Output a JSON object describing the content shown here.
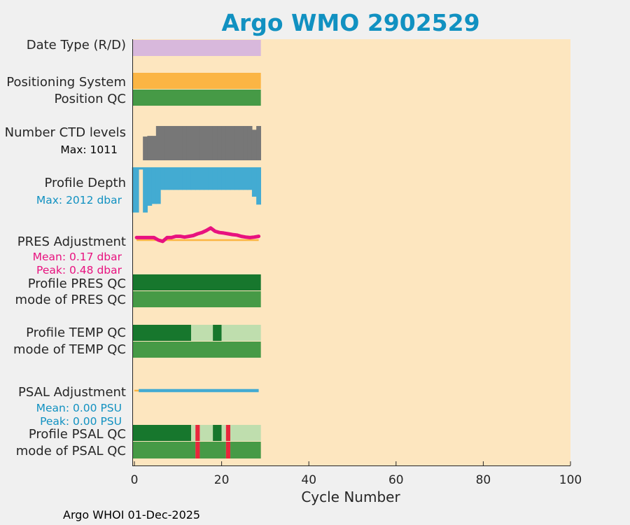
{
  "chart_data": {
    "type": "bar",
    "title": "Argo WMO 2902529",
    "xlabel": "Cycle Number",
    "xlim": [
      0,
      100
    ],
    "xticks": [
      "0",
      "20",
      "40",
      "60",
      "80",
      "100"
    ],
    "n_cycles": 29,
    "rows": {
      "date_type": {
        "label": "Date Type (R/D)"
      },
      "positioning_system": {
        "label": "Positioning System"
      },
      "position_qc": {
        "label": "Position QC"
      },
      "ctd_levels": {
        "label": "Number CTD levels",
        "max_text": "Max: 1011",
        "values": [
          0,
          0,
          700,
          720,
          720,
          1011,
          1011,
          1011,
          1011,
          1011,
          1011,
          1011,
          1011,
          1011,
          1011,
          1011,
          1011,
          1011,
          1011,
          1011,
          1011,
          1011,
          1011,
          1011,
          1011,
          1011,
          1011,
          900,
          1011
        ]
      },
      "profile_depth": {
        "label": "Profile Depth",
        "max_text": "Max: 2012 dbar",
        "values": [
          2000,
          100,
          2000,
          1700,
          1620,
          1620,
          1000,
          1000,
          1000,
          1000,
          1000,
          1000,
          1000,
          1000,
          1000,
          1000,
          1000,
          1000,
          1000,
          1000,
          1000,
          1000,
          1000,
          1000,
          1000,
          1000,
          1000,
          1300,
          1650
        ]
      },
      "pres_adjustment": {
        "label": "PRES Adjustment",
        "mean_text": "Mean: 0.17 dbar",
        "peak_text": "Peak: 0.48 dbar",
        "values": [
          0.1,
          0.1,
          0.1,
          0.1,
          0.1,
          0.0,
          -0.05,
          0.1,
          0.1,
          0.15,
          0.15,
          0.12,
          0.15,
          0.18,
          0.25,
          0.3,
          0.38,
          0.48,
          0.35,
          0.3,
          0.28,
          0.25,
          0.22,
          0.2,
          0.15,
          0.12,
          0.1,
          0.12,
          0.15
        ]
      },
      "profile_pres_qc": {
        "label": "Profile PRES QC"
      },
      "mode_pres_qc": {
        "label": "mode of PRES QC"
      },
      "profile_temp_qc": {
        "label": "Profile TEMP QC",
        "segments": [
          {
            "from": 0,
            "to": 13,
            "color": "#17772d"
          },
          {
            "from": 13,
            "to": 18,
            "color": "#bfdeae"
          },
          {
            "from": 18,
            "to": 20,
            "color": "#17772d"
          },
          {
            "from": 20,
            "to": 29,
            "color": "#bfdeae"
          }
        ]
      },
      "mode_temp_qc": {
        "label": "mode of TEMP QC"
      },
      "psal_adjustment": {
        "label": "PSAL Adjustment",
        "mean_text": "Mean: 0.00 PSU",
        "peak_text": "Peak: 0.00 PSU",
        "value": 0.0
      },
      "profile_psal_qc": {
        "label": "Profile PSAL QC",
        "segments": [
          {
            "from": 0,
            "to": 13,
            "color": "#17772d"
          },
          {
            "from": 13,
            "to": 14,
            "color": "#bfdeae"
          },
          {
            "from": 14,
            "to": 15,
            "color": "#e8263b"
          },
          {
            "from": 15,
            "to": 18,
            "color": "#bfdeae"
          },
          {
            "from": 18,
            "to": 20,
            "color": "#17772d"
          },
          {
            "from": 20,
            "to": 21,
            "color": "#bfdeae"
          },
          {
            "from": 21,
            "to": 22,
            "color": "#e8263b"
          },
          {
            "from": 22,
            "to": 29,
            "color": "#bfdeae"
          }
        ]
      },
      "mode_psal_qc": {
        "label": "mode of PSAL QC",
        "segments": [
          {
            "from": 0,
            "to": 14,
            "color": "#469a46"
          },
          {
            "from": 14,
            "to": 15,
            "color": "#e8263b"
          },
          {
            "from": 15,
            "to": 21,
            "color": "#469a46"
          },
          {
            "from": 21,
            "to": 22,
            "color": "#e8263b"
          },
          {
            "from": 22,
            "to": 29,
            "color": "#469a46"
          }
        ]
      }
    }
  },
  "footer": "Argo WHOI 01-Dec-2025",
  "colors": {
    "title": "#1191c1",
    "plot_bg": "#fde6bf",
    "date_type": "#d8b8dc",
    "positioning": "#fbb544",
    "qc_good": "#469a46",
    "qc_dark": "#17772d",
    "qc_light": "#bfdeae",
    "qc_bad": "#e8263b",
    "ctd": "#777777",
    "depth": "#43abd2",
    "pres_adj": "#e8127f",
    "pres_info": "#e8127f",
    "depth_info": "#1191c1",
    "psal_adj": "#43abd2",
    "zero_line": "#fbb544"
  }
}
